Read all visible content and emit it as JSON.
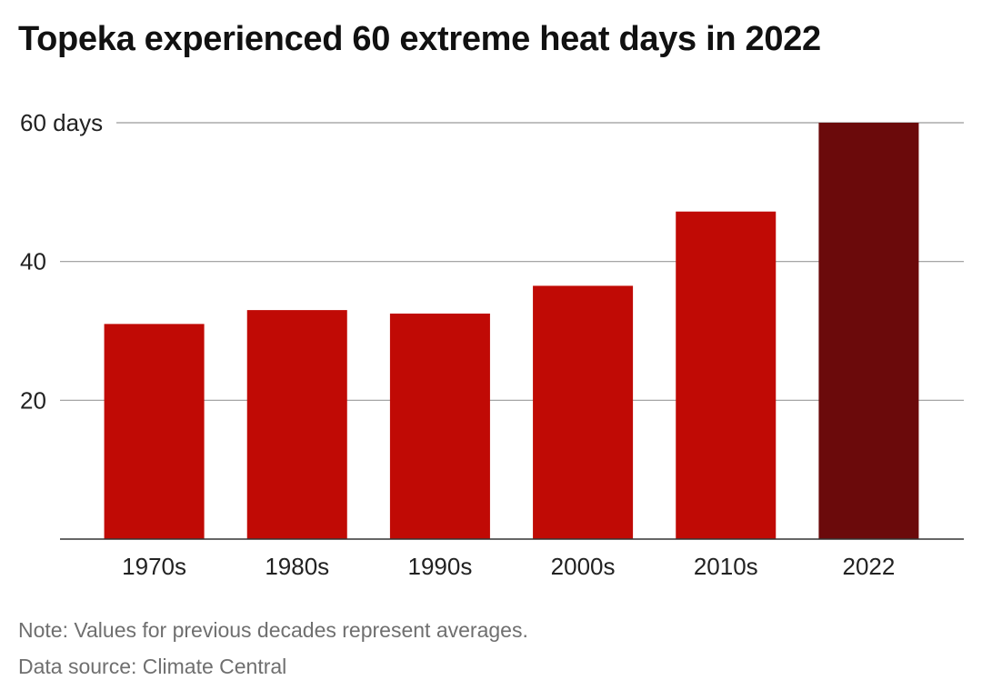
{
  "title": "Topeka experienced 60 extreme heat days in 2022",
  "note": "Note: Values for previous decades represent averages.",
  "source": "Data source: Climate Central",
  "colors": {
    "bar": "#c00a05",
    "highlight": "#6b0a0b",
    "grid": "#333333"
  },
  "chart_data": {
    "type": "bar",
    "categories": [
      "1970s",
      "1980s",
      "1990s",
      "2000s",
      "2010s",
      "2022"
    ],
    "values": [
      31,
      33,
      32.5,
      36.5,
      47.2,
      60
    ],
    "ylim": [
      0,
      60
    ],
    "yticks": [
      20,
      40,
      60
    ],
    "ytick_labels": [
      "20",
      "40",
      "60 days"
    ],
    "highlight_index": 5,
    "grid": true,
    "xlabel": "",
    "ylabel": ""
  }
}
